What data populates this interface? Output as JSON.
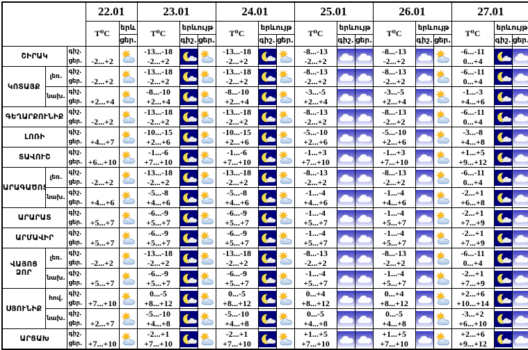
{
  "chart_data": {
    "type": "table",
    "title": "",
    "dates": [
      "22.01",
      "23.01",
      "24.01",
      "25.01",
      "26.01",
      "27.01"
    ],
    "header": {
      "temp_label": "T⁰C",
      "phenomenon_label": "երևույթ",
      "phenomenon_short": "երև",
      "night_label": "գիշ.",
      "day_label": "ցեր."
    },
    "date_columns": [
      {
        "date": "22.01",
        "night_icon": null,
        "day_icon": "sun-cloud"
      },
      {
        "date": "23.01",
        "night_icon": "moon-cloud",
        "day_icon": "sun-cloud"
      },
      {
        "date": "24.01",
        "night_icon": "moon-cloud",
        "day_icon": "sun-cloud"
      },
      {
        "date": "25.01",
        "night_icon": "cloud",
        "day_icon": "cloud"
      },
      {
        "date": "26.01",
        "night_icon": "cloud",
        "day_icon": "sun-cloud"
      },
      {
        "date": "27.01",
        "night_icon": "moon-cloud",
        "day_icon": "cloud"
      }
    ],
    "rows": [
      {
        "region": "ՇԻՐԱԿ",
        "region_span": 1,
        "sub": null,
        "temps": [
          {
            "n": null,
            "d": "-2...+2"
          },
          {
            "n": "-13...-18",
            "d": "-2...+2"
          },
          {
            "n": "-13...-18",
            "d": "-2...+2"
          },
          {
            "n": "-8...-13",
            "d": "-2...+2"
          },
          {
            "n": "-8...-13",
            "d": "-2...+2"
          },
          {
            "n": "-6...-11",
            "d": "0...+4"
          }
        ]
      },
      {
        "region": "ԿՈՏԱՅՔ",
        "region_span": 2,
        "sub": "լեռ.",
        "temps": [
          {
            "n": null,
            "d": "-2...+2"
          },
          {
            "n": "-13...-18",
            "d": "-2...+2"
          },
          {
            "n": "-13...-18",
            "d": "-2...+2"
          },
          {
            "n": "-8...-13",
            "d": "-2...+2"
          },
          {
            "n": "-8...-13",
            "d": "-2...+2"
          },
          {
            "n": "-6...-11",
            "d": "0...+4"
          }
        ]
      },
      {
        "region": null,
        "region_span": 0,
        "sub": "նախ.",
        "temps": [
          {
            "n": null,
            "d": "+2...+4"
          },
          {
            "n": "-8...-10",
            "d": "+2...+4"
          },
          {
            "n": "-8...-10",
            "d": "+2...+4"
          },
          {
            "n": "-3...-5",
            "d": "+2...+4"
          },
          {
            "n": "-3...-5",
            "d": "+2...+4"
          },
          {
            "n": "-1...-3",
            "d": "+4...+6"
          }
        ]
      },
      {
        "region": "ԳԵՂԱՐՔՈՒՆԻՔ",
        "region_span": 1,
        "sub": null,
        "temps": [
          {
            "n": null,
            "d": "-2...+2"
          },
          {
            "n": "-13...-18",
            "d": "-2...+2"
          },
          {
            "n": "-13...-18",
            "d": "-2...+2"
          },
          {
            "n": "-8...-13",
            "d": "-2...+2"
          },
          {
            "n": "-8...-13",
            "d": "-2...+2"
          },
          {
            "n": "-6...-11",
            "d": "0...+4"
          }
        ]
      },
      {
        "region": "ԼՈՌԻ",
        "region_span": 1,
        "sub": null,
        "temps": [
          {
            "n": null,
            "d": "+4...+7"
          },
          {
            "n": "-10...-15",
            "d": "+2...+6"
          },
          {
            "n": "-10...-15",
            "d": "+2...+6"
          },
          {
            "n": "-5...-10",
            "d": "+2...+6"
          },
          {
            "n": "-5...-10",
            "d": "+2...+6"
          },
          {
            "n": "-3...-8",
            "d": "+4...+8"
          }
        ]
      },
      {
        "region": "ՏԱՎՈՒՇ",
        "region_span": 1,
        "sub": null,
        "temps": [
          {
            "n": null,
            "d": "+6...+10"
          },
          {
            "n": "-1...-6",
            "d": "+7...+10"
          },
          {
            "n": "-1...-6",
            "d": "+7...+10"
          },
          {
            "n": "-1...+3",
            "d": "+7...+10"
          },
          {
            "n": "-1...+3",
            "d": "+7...+10"
          },
          {
            "n": "+1...+5",
            "d": "+9...+12"
          }
        ]
      },
      {
        "region": "ԱՐԱԳԱԾՈՏՆ",
        "region_span": 2,
        "sub": "լեռ.",
        "temps": [
          {
            "n": null,
            "d": "-2...+2"
          },
          {
            "n": "-13...-18",
            "d": "-2...+2"
          },
          {
            "n": "-13...-18",
            "d": "-2...+2"
          },
          {
            "n": "-8...-13",
            "d": "-2...+2"
          },
          {
            "n": "-8...-13",
            "d": "-2...+2"
          },
          {
            "n": "-6...-11",
            "d": "0...+4"
          }
        ]
      },
      {
        "region": null,
        "region_span": 0,
        "sub": "նախ.",
        "temps": [
          {
            "n": null,
            "d": "+4...+6"
          },
          {
            "n": "-5...-8",
            "d": "+4...+6"
          },
          {
            "n": "-5...-8",
            "d": "+4...+6"
          },
          {
            "n": "-1...-4",
            "d": "+4...+6"
          },
          {
            "n": "-1...-4",
            "d": "+4...+6"
          },
          {
            "n": "-2...+1",
            "d": "+6...+8"
          }
        ]
      },
      {
        "region": "ԱՐԱՐԱՏ",
        "region_span": 1,
        "sub": null,
        "temps": [
          {
            "n": null,
            "d": "+5...+7"
          },
          {
            "n": "-6...-9",
            "d": "+5...+7"
          },
          {
            "n": "-6...-9",
            "d": "+5...+7"
          },
          {
            "n": "-1...-4",
            "d": "+5...+7"
          },
          {
            "n": "-1...-4",
            "d": "+5...+7"
          },
          {
            "n": "-2...+1",
            "d": "+7...+9"
          }
        ]
      },
      {
        "region": "ԱՐՄԱՎԻՐ",
        "region_span": 1,
        "sub": null,
        "temps": [
          {
            "n": null,
            "d": "+5...+7"
          },
          {
            "n": "-6...-9",
            "d": "+5...+7"
          },
          {
            "n": "-6...-9",
            "d": "+5...+7"
          },
          {
            "n": "-1...-4",
            "d": "+5...+7"
          },
          {
            "n": "-1...-4",
            "d": "+5...+7"
          },
          {
            "n": "-2...+1",
            "d": "+7...+9"
          }
        ]
      },
      {
        "region": "ՎԱՅՈՑ ՁՈՐ",
        "region_span": 2,
        "sub": "լեռ.",
        "temps": [
          {
            "n": null,
            "d": "-2...+2"
          },
          {
            "n": "-13...-18",
            "d": "-2...+2"
          },
          {
            "n": "-13...-18",
            "d": "-2...+2"
          },
          {
            "n": "-8...-13",
            "d": "-2...+2"
          },
          {
            "n": "-8...-13",
            "d": "-2...+2"
          },
          {
            "n": "-6...-11",
            "d": "0...+4"
          }
        ]
      },
      {
        "region": null,
        "region_span": 0,
        "sub": "նախ.",
        "temps": [
          {
            "n": null,
            "d": "+5...+7"
          },
          {
            "n": "-6...-9",
            "d": "+5...+7"
          },
          {
            "n": "-6...-9",
            "d": "+5...+7"
          },
          {
            "n": "-1...-4",
            "d": "+5...+7"
          },
          {
            "n": "-1...-4",
            "d": "+5...+7"
          },
          {
            "n": "-2...+1",
            "d": "+7...+9"
          }
        ]
      },
      {
        "region": "ՍՅՈՒՆԻՔ",
        "region_span": 2,
        "sub": "հով.",
        "temps": [
          {
            "n": null,
            "d": "+7...+10"
          },
          {
            "n": "0...-5",
            "d": "+8...+12"
          },
          {
            "n": "0...-5",
            "d": "+8...+12"
          },
          {
            "n": "0...+4",
            "d": "+8...+12"
          },
          {
            "n": "0...+4",
            "d": "+8...+12"
          },
          {
            "n": "+2...+6",
            "d": "+10...+14"
          }
        ]
      },
      {
        "region": null,
        "region_span": 0,
        "sub": "նախ.",
        "temps": [
          {
            "n": null,
            "d": "+2...+7"
          },
          {
            "n": "-5...-10",
            "d": "+4...+8"
          },
          {
            "n": "-5...-10",
            "d": "+4...+8"
          },
          {
            "n": "0...-5",
            "d": "+4...+8"
          },
          {
            "n": "0...-5",
            "d": "+4...+8"
          },
          {
            "n": "-3...+2",
            "d": "+6...+10"
          }
        ]
      },
      {
        "region": "ԱՐՑԱԽ",
        "region_span": 1,
        "sub": null,
        "temps": [
          {
            "n": null,
            "d": "+7...+10"
          },
          {
            "n": "-2...+1",
            "d": "+7...+10"
          },
          {
            "n": "-2...+1",
            "d": "+7...+10"
          },
          {
            "n": "+1...+5",
            "d": "+7...+10"
          },
          {
            "n": "+1...+5",
            "d": "+7...+10"
          },
          {
            "n": "+2...+6",
            "d": "+9...+12"
          }
        ]
      }
    ]
  },
  "colors": {
    "border": "#000000",
    "night_icon_bg": "#00007b",
    "moon_yellow": "#f2df4e",
    "sun_yellow": "#fcbe1f",
    "day_cloud_fill": "#c4d7ee",
    "overcast_bg_top": "#3d3dc2",
    "overcast_bg_bottom": "#f0f1ff",
    "text": "#000000"
  }
}
